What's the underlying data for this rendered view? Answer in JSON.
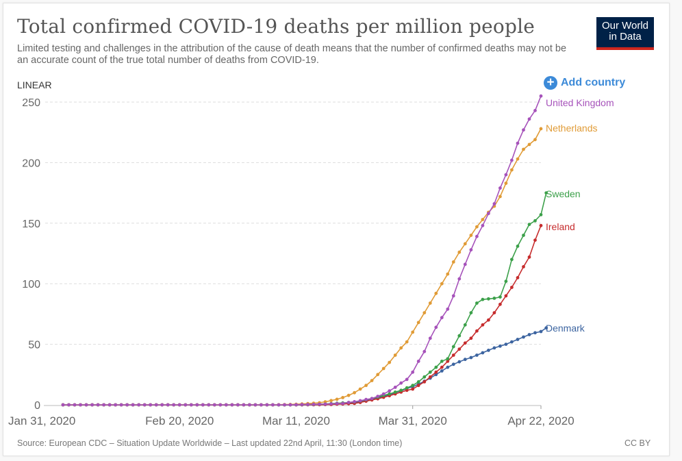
{
  "header": {
    "title": "Total confirmed COVID-19 deaths per million people",
    "subtitle": "Limited testing and challenges in the attribution of the cause of death means that the number of confirmed deaths may not be an accurate count of the true total number of deaths from COVID-19.",
    "logo_line1": "Our World",
    "logo_line2": "in Data",
    "scale_toggle": "LINEAR",
    "add_country_label": "Add country",
    "add_icon": "plus-circle-icon"
  },
  "footer": {
    "source": "Source: European CDC – Situation Update Worldwide – Last updated 22nd April, 11:30 (London time)",
    "license": "CC BY"
  },
  "colors": {
    "logo_bg": "#002147",
    "logo_stripe": "#ce261e",
    "accent": "#3c8ad8"
  },
  "chart_data": {
    "type": "line",
    "title": "Total confirmed COVID-19 deaths per million people",
    "xlabel": "",
    "ylabel": "",
    "x_start": "2020-01-31",
    "x_end": "2020-04-22",
    "x_days": 82,
    "ylim": [
      0,
      250
    ],
    "yticks": [
      0,
      50,
      100,
      150,
      200,
      250
    ],
    "xticks": [
      {
        "day": 0,
        "label": "Jan 31, 2020"
      },
      {
        "day": 20,
        "label": "Feb 20, 2020"
      },
      {
        "day": 40,
        "label": "Mar 11, 2020"
      },
      {
        "day": 60,
        "label": "Mar 31, 2020"
      },
      {
        "day": 82,
        "label": "Apr 22, 2020"
      }
    ],
    "grid": "horizontal-dashed",
    "legend": "inline-right",
    "series": [
      {
        "name": "United Kingdom",
        "color": "#a652ba",
        "points": [
          [
            0,
            0
          ],
          [
            36,
            0
          ],
          [
            40,
            0.1
          ],
          [
            42,
            0.3
          ],
          [
            44,
            0.5
          ],
          [
            46,
            0.8
          ],
          [
            48,
            1.2
          ],
          [
            49,
            2.0
          ],
          [
            50,
            2.6
          ],
          [
            51,
            3.4
          ],
          [
            52,
            4.4
          ],
          [
            53,
            5.2
          ],
          [
            54,
            7.0
          ],
          [
            55,
            9.0
          ],
          [
            56,
            11.5
          ],
          [
            57,
            14.5
          ],
          [
            58,
            18.0
          ],
          [
            59,
            21.0
          ],
          [
            60,
            27.0
          ],
          [
            61,
            36.0
          ],
          [
            62,
            44.0
          ],
          [
            63,
            55.0
          ],
          [
            64,
            64.0
          ],
          [
            65,
            72.0
          ],
          [
            66,
            79.0
          ],
          [
            67,
            90.0
          ],
          [
            68,
            104.0
          ],
          [
            69,
            116.0
          ],
          [
            70,
            128.0
          ],
          [
            71,
            139.0
          ],
          [
            72,
            148.0
          ],
          [
            73,
            158.0
          ],
          [
            74,
            166.0
          ],
          [
            75,
            179.0
          ],
          [
            76,
            190.0
          ],
          [
            77,
            202.0
          ],
          [
            78,
            216.0
          ],
          [
            79,
            227.0
          ],
          [
            80,
            236.0
          ],
          [
            81,
            243.0
          ],
          [
            82,
            255.0
          ]
        ]
      },
      {
        "name": "Netherlands",
        "color": "#e09b36",
        "points": [
          [
            0,
            0
          ],
          [
            36,
            0
          ],
          [
            38,
            0.2
          ],
          [
            40,
            0.5
          ],
          [
            42,
            1.0
          ],
          [
            44,
            1.7
          ],
          [
            45,
            2.5
          ],
          [
            46,
            3.5
          ],
          [
            47,
            4.6
          ],
          [
            48,
            6.0
          ],
          [
            49,
            7.8
          ],
          [
            50,
            10.0
          ],
          [
            51,
            13.0
          ],
          [
            52,
            16.0
          ],
          [
            53,
            20.0
          ],
          [
            54,
            25.0
          ],
          [
            55,
            30.0
          ],
          [
            56,
            35.0
          ],
          [
            57,
            41.0
          ],
          [
            58,
            47.0
          ],
          [
            59,
            52.0
          ],
          [
            60,
            60.0
          ],
          [
            61,
            68.0
          ],
          [
            62,
            76.0
          ],
          [
            63,
            84.0
          ],
          [
            64,
            92.0
          ],
          [
            65,
            100.0
          ],
          [
            66,
            108.0
          ],
          [
            67,
            118.0
          ],
          [
            68,
            126.0
          ],
          [
            69,
            133.0
          ],
          [
            70,
            140.0
          ],
          [
            71,
            147.0
          ],
          [
            72,
            153.0
          ],
          [
            73,
            159.0
          ],
          [
            74,
            164.0
          ],
          [
            75,
            172.0
          ],
          [
            76,
            183.0
          ],
          [
            77,
            194.0
          ],
          [
            78,
            203.0
          ],
          [
            79,
            211.0
          ],
          [
            80,
            215.0
          ],
          [
            81,
            219.0
          ],
          [
            82,
            228.0
          ]
        ]
      },
      {
        "name": "Sweden",
        "color": "#3ca04a",
        "points": [
          [
            0,
            0
          ],
          [
            38,
            0
          ],
          [
            42,
            0.2
          ],
          [
            44,
            0.5
          ],
          [
            46,
            1.0
          ],
          [
            48,
            1.6
          ],
          [
            50,
            2.4
          ],
          [
            51,
            3.2
          ],
          [
            52,
            4.2
          ],
          [
            53,
            5.2
          ],
          [
            54,
            6.4
          ],
          [
            55,
            7.8
          ],
          [
            56,
            9.0
          ],
          [
            57,
            10.5
          ],
          [
            58,
            12.0
          ],
          [
            59,
            14.0
          ],
          [
            60,
            16.0
          ],
          [
            61,
            19.0
          ],
          [
            62,
            23.0
          ],
          [
            63,
            27.0
          ],
          [
            64,
            31.0
          ],
          [
            65,
            36.0
          ],
          [
            66,
            38.0
          ],
          [
            67,
            48.0
          ],
          [
            68,
            57.0
          ],
          [
            69,
            66.0
          ],
          [
            70,
            76.0
          ],
          [
            71,
            84.0
          ],
          [
            72,
            87.0
          ],
          [
            73,
            87.5
          ],
          [
            74,
            88.0
          ],
          [
            75,
            89.0
          ],
          [
            76,
            102.0
          ],
          [
            77,
            120.0
          ],
          [
            78,
            131.0
          ],
          [
            79,
            140.0
          ],
          [
            80,
            149.0
          ],
          [
            81,
            152.0
          ],
          [
            82,
            157.0
          ],
          [
            82.9,
            175.0
          ]
        ]
      },
      {
        "name": "Ireland",
        "color": "#c62c2d",
        "points": [
          [
            0,
            0
          ],
          [
            40,
            0
          ],
          [
            44,
            0.1
          ],
          [
            46,
            0.3
          ],
          [
            48,
            0.7
          ],
          [
            50,
            1.2
          ],
          [
            51,
            2.0
          ],
          [
            52,
            3.0
          ],
          [
            53,
            4.0
          ],
          [
            54,
            5.0
          ],
          [
            55,
            6.2
          ],
          [
            56,
            7.5
          ],
          [
            57,
            9.0
          ],
          [
            58,
            10.5
          ],
          [
            59,
            12.0
          ],
          [
            60,
            13.0
          ],
          [
            61,
            16.0
          ],
          [
            62,
            19.0
          ],
          [
            63,
            23.0
          ],
          [
            64,
            27.0
          ],
          [
            65,
            31.0
          ],
          [
            66,
            36.0
          ],
          [
            67,
            41.0
          ],
          [
            68,
            46.0
          ],
          [
            69,
            51.0
          ],
          [
            70,
            55.0
          ],
          [
            71,
            61.0
          ],
          [
            72,
            66.0
          ],
          [
            73,
            70.0
          ],
          [
            74,
            76.0
          ],
          [
            75,
            83.0
          ],
          [
            76,
            90.0
          ],
          [
            77,
            97.0
          ],
          [
            78,
            105.0
          ],
          [
            79,
            114.0
          ],
          [
            80,
            122.0
          ],
          [
            81,
            136.0
          ],
          [
            82,
            148.0
          ]
        ]
      },
      {
        "name": "Denmark",
        "color": "#3c64a0",
        "points": [
          [
            0,
            0
          ],
          [
            40,
            0
          ],
          [
            44,
            0.2
          ],
          [
            46,
            0.5
          ],
          [
            48,
            1.0
          ],
          [
            50,
            1.8
          ],
          [
            51,
            2.6
          ],
          [
            52,
            3.6
          ],
          [
            53,
            4.6
          ],
          [
            54,
            5.8
          ],
          [
            55,
            7.0
          ],
          [
            56,
            8.3
          ],
          [
            57,
            10.0
          ],
          [
            58,
            11.6
          ],
          [
            59,
            13.5
          ],
          [
            60,
            15.0
          ],
          [
            61,
            17.0
          ],
          [
            62,
            19.5
          ],
          [
            63,
            22.0
          ],
          [
            64,
            25.0
          ],
          [
            65,
            28.0
          ],
          [
            66,
            31.0
          ],
          [
            67,
            33.5
          ],
          [
            68,
            35.5
          ],
          [
            69,
            37.5
          ],
          [
            70,
            39.0
          ],
          [
            71,
            41.0
          ],
          [
            72,
            43.0
          ],
          [
            73,
            45.0
          ],
          [
            74,
            47.0
          ],
          [
            75,
            48.5
          ],
          [
            76,
            50.0
          ],
          [
            77,
            52.0
          ],
          [
            78,
            54.0
          ],
          [
            79,
            56.0
          ],
          [
            80,
            58.0
          ],
          [
            81,
            59.5
          ],
          [
            82,
            60.5
          ],
          [
            82.9,
            63.5
          ]
        ]
      }
    ]
  }
}
